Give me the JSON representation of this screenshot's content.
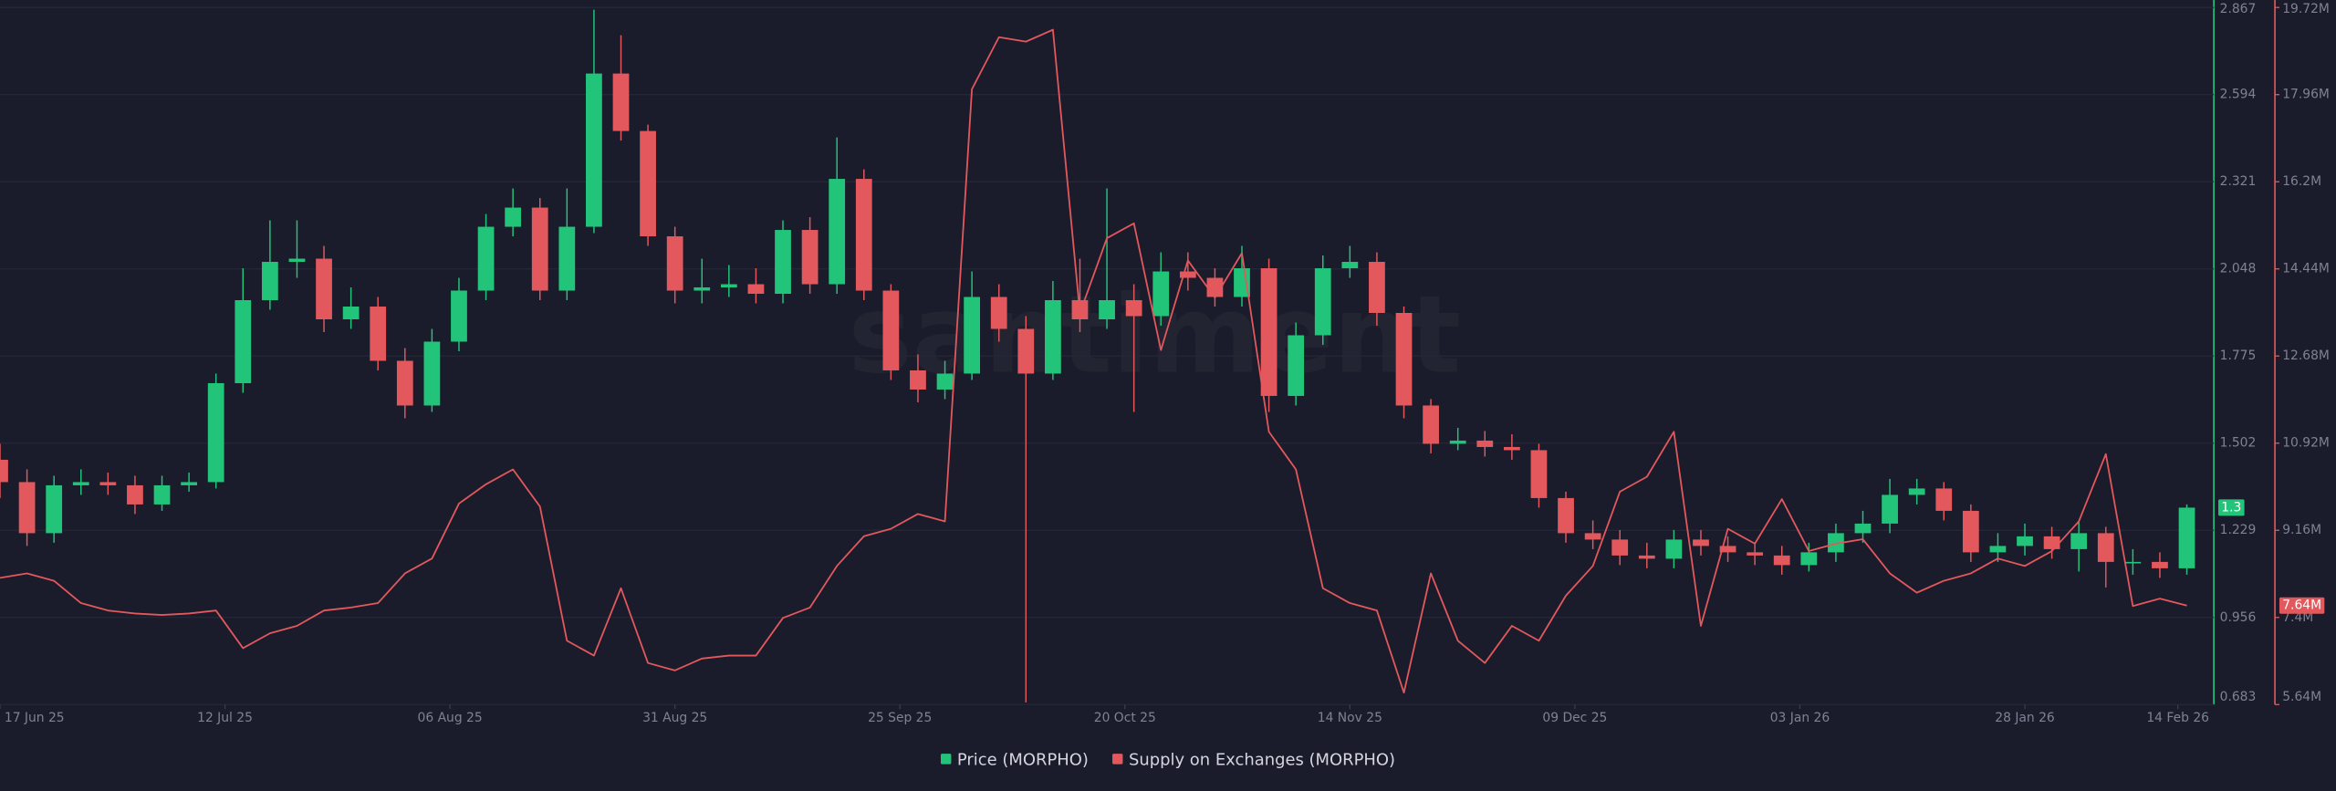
{
  "watermark": "santiment",
  "chart_data": {
    "type": "combo",
    "x": [
      "2025-06-17",
      "2025-06-20",
      "2025-06-23",
      "2025-06-26",
      "2025-06-29",
      "2025-07-02",
      "2025-07-05",
      "2025-07-08",
      "2025-07-11",
      "2025-07-14",
      "2025-07-17",
      "2025-07-20",
      "2025-07-23",
      "2025-07-26",
      "2025-07-29",
      "2025-08-01",
      "2025-08-04",
      "2025-08-07",
      "2025-08-10",
      "2025-08-13",
      "2025-08-16",
      "2025-08-19",
      "2025-08-22",
      "2025-08-25",
      "2025-08-28",
      "2025-08-31",
      "2025-09-03",
      "2025-09-06",
      "2025-09-09",
      "2025-09-12",
      "2025-09-15",
      "2025-09-18",
      "2025-09-21",
      "2025-09-24",
      "2025-09-27",
      "2025-09-30",
      "2025-10-03",
      "2025-10-06",
      "2025-10-09",
      "2025-10-12",
      "2025-10-15",
      "2025-10-18",
      "2025-10-21",
      "2025-10-24",
      "2025-10-27",
      "2025-10-30",
      "2025-11-02",
      "2025-11-05",
      "2025-11-08",
      "2025-11-11",
      "2025-11-14",
      "2025-11-17",
      "2025-11-20",
      "2025-11-23",
      "2025-11-26",
      "2025-11-29",
      "2025-12-02",
      "2025-12-05",
      "2025-12-08",
      "2025-12-11",
      "2025-12-14",
      "2025-12-17",
      "2025-12-20",
      "2025-12-23",
      "2025-12-26",
      "2025-12-29",
      "2026-01-01",
      "2026-01-04",
      "2026-01-07",
      "2026-01-10",
      "2026-01-13",
      "2026-01-16",
      "2026-01-19",
      "2026-01-22",
      "2026-01-25",
      "2026-01-28",
      "2026-01-31",
      "2026-02-03",
      "2026-02-06",
      "2026-02-09",
      "2026-02-12",
      "2026-02-15"
    ],
    "xlim": [
      "2025-06-17",
      "2026-02-18"
    ],
    "xticks": [
      {
        "value": "2025-06-17",
        "label": "17 Jun 25"
      },
      {
        "value": "2025-07-12",
        "label": "12 Jul 25"
      },
      {
        "value": "2025-08-06",
        "label": "06 Aug 25"
      },
      {
        "value": "2025-08-31",
        "label": "31 Aug 25"
      },
      {
        "value": "2025-09-25",
        "label": "25 Sep 25"
      },
      {
        "value": "2025-10-20",
        "label": "20 Oct 25"
      },
      {
        "value": "2025-11-14",
        "label": "14 Nov 25"
      },
      {
        "value": "2025-12-09",
        "label": "09 Dec 25"
      },
      {
        "value": "2026-01-03",
        "label": "03 Jan 26"
      },
      {
        "value": "2026-01-28",
        "label": "28 Jan 26"
      },
      {
        "value": "2026-02-14",
        "label": "14 Feb 26"
      }
    ],
    "ylim": [
      0.683,
      2.867
    ],
    "yticks": [
      0.683,
      0.956,
      1.229,
      1.502,
      1.775,
      2.048,
      2.321,
      2.594,
      2.867
    ],
    "y2lim": [
      5.64,
      19.72
    ],
    "y2ticks": [
      {
        "value": 5.64,
        "label": "5.64M"
      },
      {
        "value": 7.4,
        "label": "7.4M"
      },
      {
        "value": 9.16,
        "label": "9.16M"
      },
      {
        "value": 10.92,
        "label": "10.92M"
      },
      {
        "value": 12.68,
        "label": "12.68M"
      },
      {
        "value": 14.44,
        "label": "14.44M"
      },
      {
        "value": 16.2,
        "label": "16.2M"
      },
      {
        "value": 17.96,
        "label": "17.96M"
      },
      {
        "value": 19.72,
        "label": "19.72M"
      }
    ],
    "grid": true,
    "series": [
      {
        "name": "Price (MORPHO)",
        "type": "candlestick",
        "color": "#22c47a",
        "down_color": "#e2585c",
        "open": [
          1.45,
          1.38,
          1.22,
          1.37,
          1.38,
          1.37,
          1.31,
          1.37,
          1.38,
          1.69,
          1.95,
          2.07,
          2.08,
          1.89,
          1.93,
          1.76,
          1.62,
          1.82,
          1.98,
          2.18,
          2.24,
          1.98,
          2.18,
          2.66,
          2.48,
          2.15,
          1.98,
          1.99,
          2.0,
          1.97,
          2.17,
          2.0,
          2.33,
          1.98,
          1.73,
          1.67,
          1.72,
          1.96,
          1.86,
          1.72,
          1.95,
          1.89,
          1.95,
          1.9,
          2.04,
          2.02,
          1.96,
          2.05,
          1.65,
          1.84,
          2.05,
          2.07,
          1.91,
          1.62,
          1.5,
          1.51,
          1.49,
          1.48,
          1.33,
          1.22,
          1.2,
          1.15,
          1.14,
          1.2,
          1.18,
          1.16,
          1.15,
          1.12,
          1.16,
          1.22,
          1.25,
          1.34,
          1.36,
          1.29,
          1.16,
          1.18,
          1.21,
          1.17,
          1.22,
          1.13,
          1.13,
          1.11
        ],
        "high": [
          1.5,
          1.42,
          1.4,
          1.42,
          1.41,
          1.4,
          1.4,
          1.41,
          1.72,
          2.05,
          2.2,
          2.2,
          2.12,
          1.99,
          1.96,
          1.8,
          1.86,
          2.02,
          2.22,
          2.3,
          2.27,
          2.3,
          2.86,
          2.78,
          2.5,
          2.18,
          2.08,
          2.06,
          2.05,
          2.2,
          2.21,
          2.46,
          2.36,
          2.0,
          1.78,
          1.76,
          2.04,
          2.0,
          1.9,
          2.01,
          2.08,
          2.3,
          2.0,
          2.1,
          2.1,
          2.05,
          2.12,
          2.08,
          1.88,
          2.09,
          2.12,
          2.1,
          1.93,
          1.64,
          1.55,
          1.54,
          1.53,
          1.5,
          1.35,
          1.26,
          1.23,
          1.19,
          1.23,
          1.23,
          1.21,
          1.19,
          1.18,
          1.19,
          1.25,
          1.29,
          1.39,
          1.39,
          1.38,
          1.31,
          1.22,
          1.25,
          1.24,
          1.26,
          1.24,
          1.17,
          1.16,
          1.31
        ],
        "low": [
          1.33,
          1.18,
          1.19,
          1.34,
          1.34,
          1.28,
          1.29,
          1.35,
          1.36,
          1.66,
          1.92,
          2.02,
          1.85,
          1.86,
          1.73,
          1.58,
          1.6,
          1.79,
          1.95,
          2.15,
          1.95,
          1.95,
          2.16,
          2.45,
          2.12,
          1.94,
          1.94,
          1.96,
          1.94,
          1.94,
          1.97,
          1.97,
          1.95,
          1.7,
          1.63,
          1.64,
          1.7,
          1.82,
          0.69,
          1.7,
          1.85,
          1.86,
          1.6,
          1.87,
          1.98,
          1.93,
          1.93,
          1.6,
          1.62,
          1.81,
          2.02,
          1.87,
          1.58,
          1.47,
          1.48,
          1.46,
          1.45,
          1.3,
          1.19,
          1.17,
          1.12,
          1.11,
          1.11,
          1.15,
          1.13,
          1.12,
          1.09,
          1.1,
          1.13,
          1.19,
          1.22,
          1.31,
          1.26,
          1.13,
          1.13,
          1.15,
          1.14,
          1.1,
          1.05,
          1.09,
          1.08,
          1.09
        ],
        "close": [
          1.38,
          1.22,
          1.37,
          1.38,
          1.37,
          1.31,
          1.37,
          1.38,
          1.69,
          1.95,
          2.07,
          2.08,
          1.89,
          1.93,
          1.76,
          1.62,
          1.82,
          1.98,
          2.18,
          2.24,
          1.98,
          2.18,
          2.66,
          2.48,
          2.15,
          1.98,
          1.99,
          2.0,
          1.97,
          2.17,
          2.0,
          2.33,
          1.98,
          1.73,
          1.67,
          1.72,
          1.96,
          1.86,
          1.72,
          1.95,
          1.89,
          1.95,
          1.9,
          2.04,
          2.02,
          1.96,
          2.05,
          1.65,
          1.84,
          2.05,
          2.07,
          1.91,
          1.62,
          1.5,
          1.51,
          1.49,
          1.48,
          1.33,
          1.22,
          1.2,
          1.15,
          1.14,
          1.2,
          1.18,
          1.16,
          1.15,
          1.12,
          1.16,
          1.22,
          1.25,
          1.34,
          1.36,
          1.29,
          1.16,
          1.18,
          1.21,
          1.17,
          1.22,
          1.13,
          1.13,
          1.11,
          1.3
        ],
        "badge": {
          "value": 1.3,
          "label": "1.3"
        }
      },
      {
        "name": "Supply on Exchanges (MORPHO)",
        "type": "line",
        "axis": "y2",
        "color": "#e2585c",
        "values": [
          8.2,
          8.29,
          8.14,
          7.69,
          7.54,
          7.48,
          7.45,
          7.48,
          7.54,
          6.78,
          7.08,
          7.23,
          7.54,
          7.6,
          7.69,
          8.29,
          8.59,
          9.7,
          10.09,
          10.39,
          9.64,
          6.93,
          6.63,
          7.99,
          6.48,
          6.33,
          6.57,
          6.63,
          6.63,
          7.39,
          7.6,
          8.44,
          9.04,
          9.19,
          9.49,
          9.34,
          18.07,
          19.12,
          19.03,
          19.27,
          13.55,
          15.06,
          15.36,
          12.8,
          14.61,
          13.86,
          14.76,
          11.15,
          10.39,
          7.99,
          7.69,
          7.54,
          5.88,
          8.29,
          6.93,
          6.48,
          7.23,
          6.93,
          7.84,
          8.44,
          9.94,
          10.24,
          11.15,
          7.23,
          9.19,
          8.89,
          9.79,
          8.74,
          8.89,
          8.98,
          8.29,
          7.9,
          8.14,
          8.29,
          8.59,
          8.44,
          8.74,
          9.34,
          10.7,
          7.63,
          7.78,
          7.64
        ],
        "badge": {
          "value": 7.64,
          "label": "7.64M"
        }
      }
    ]
  }
}
